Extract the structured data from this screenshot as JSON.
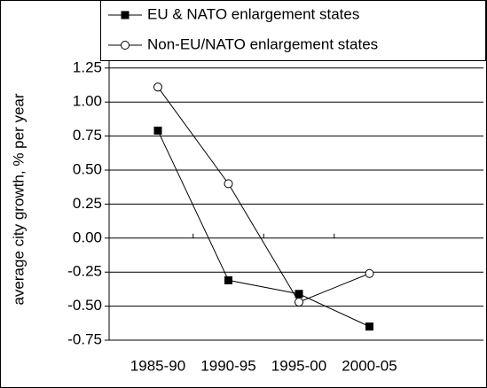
{
  "chart_data": {
    "type": "line",
    "y_label": "average city growth, % per year",
    "categories": [
      "1985-90",
      "1990-95",
      "1995-00",
      "2000-05"
    ],
    "series": [
      {
        "name": "EU & NATO enlargement states",
        "color": "#000000",
        "marker": "filled-square",
        "values": [
          0.79,
          -0.31,
          -0.41,
          -0.65
        ]
      },
      {
        "name": "Non-EU/NATO enlargement states",
        "color": "#000000",
        "marker": "open-circle",
        "values": [
          1.11,
          0.4,
          -0.47,
          -0.26
        ]
      }
    ],
    "ylim": [
      -0.75,
      1.75
    ],
    "yticks": [
      -0.75,
      {
        "value": -0.5,
        "label": "-0.50"
      },
      -0.25,
      {
        "value": 0,
        "label": "0.00"
      },
      0.25,
      {
        "value": 0.5,
        "label": "0.50"
      },
      0.75,
      {
        "value": 1,
        "label": "1.00"
      },
      1.25
    ],
    "grid": true
  }
}
